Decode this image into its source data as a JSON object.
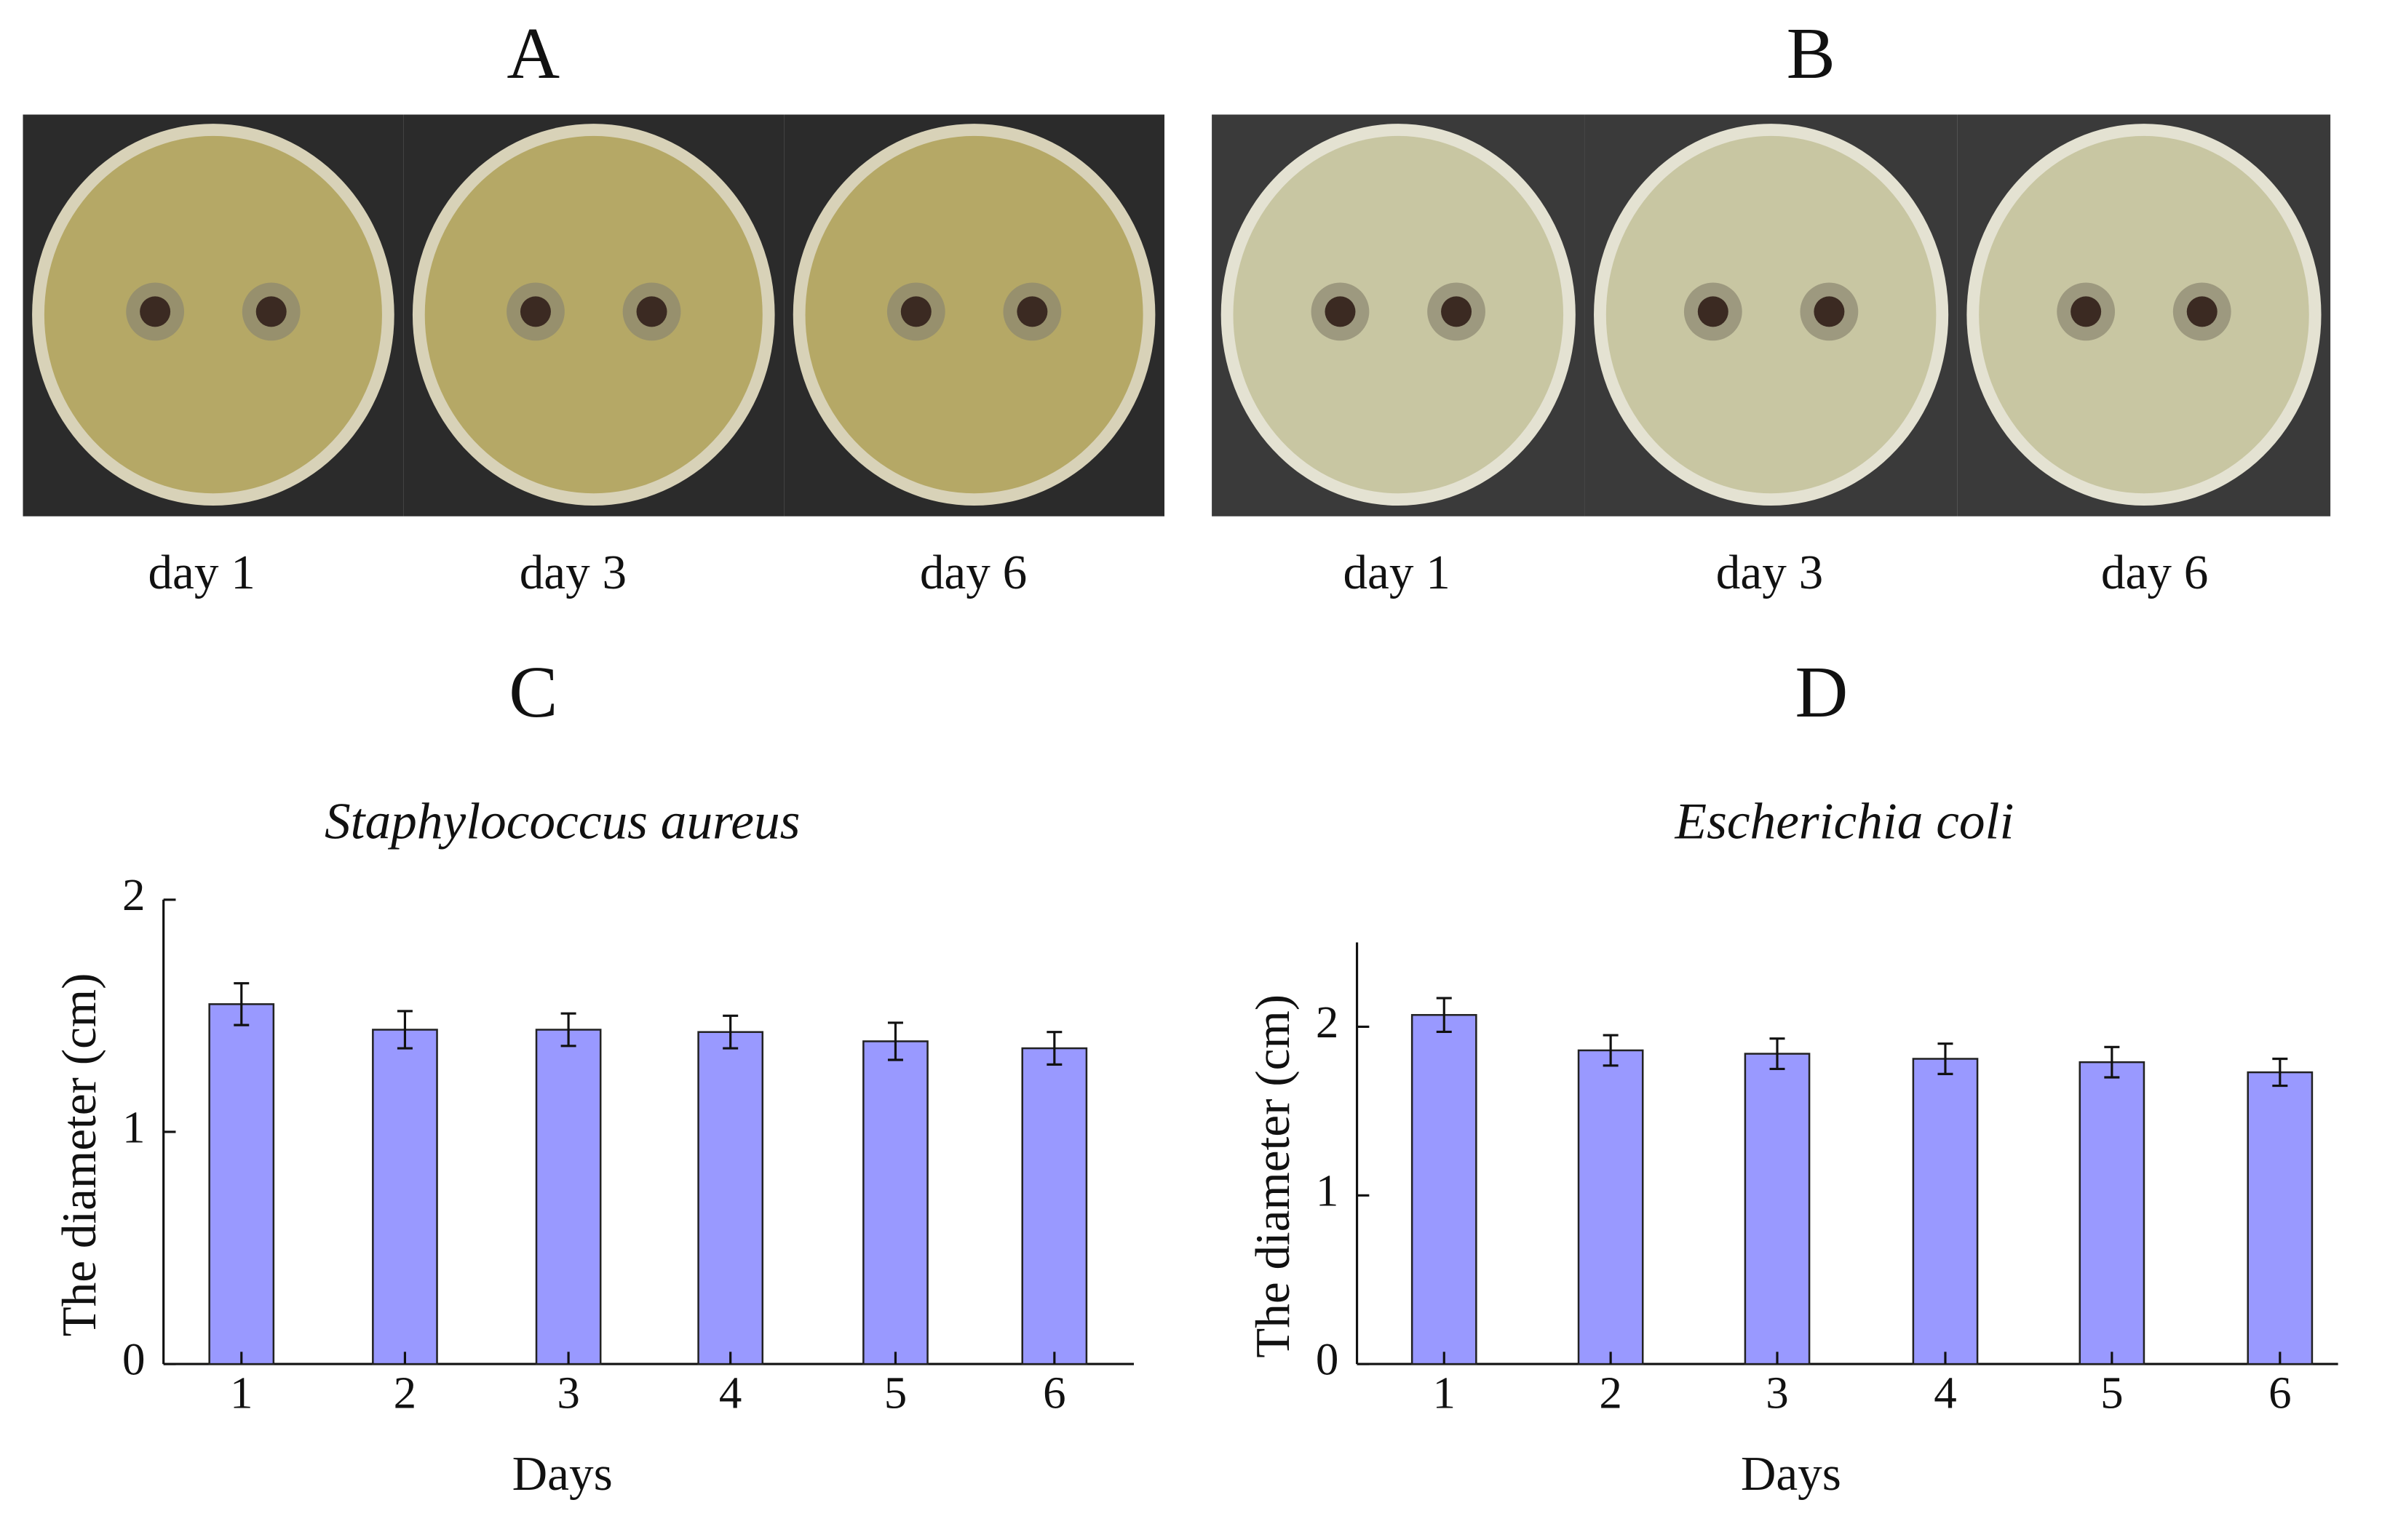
{
  "photo_panels": [
    {
      "label": "A",
      "captions": [
        "day 1",
        "day 3",
        "day 6"
      ]
    },
    {
      "label": "B",
      "captions": [
        "day 1",
        "day 3",
        "day 6"
      ]
    }
  ],
  "chart_data": [
    {
      "type": "bar",
      "panel": "C",
      "title": "Staphylococcus aureus",
      "x_label": "Days",
      "y_label": "The diameter (cm)",
      "categories": [
        "1",
        "2",
        "3",
        "4",
        "5",
        "6"
      ],
      "values": [
        1.55,
        1.44,
        1.44,
        1.43,
        1.39,
        1.36
      ],
      "errors": [
        0.09,
        0.08,
        0.07,
        0.07,
        0.08,
        0.07
      ],
      "color": "#9999ff",
      "ylim": [
        0,
        2
      ],
      "yticks": [
        0,
        1,
        2
      ]
    },
    {
      "type": "bar",
      "panel": "D",
      "title": "Escherichia coli",
      "x_label": "Days",
      "y_label": "The diameter (cm)",
      "categories": [
        "1",
        "2",
        "3",
        "4",
        "5",
        "6"
      ],
      "values": [
        2.07,
        1.86,
        1.84,
        1.81,
        1.79,
        1.73
      ],
      "errors": [
        0.1,
        0.09,
        0.09,
        0.09,
        0.09,
        0.08
      ],
      "color": "#9999ff",
      "ylim": [
        0,
        2.5
      ],
      "yticks": [
        0,
        1,
        2
      ]
    }
  ]
}
